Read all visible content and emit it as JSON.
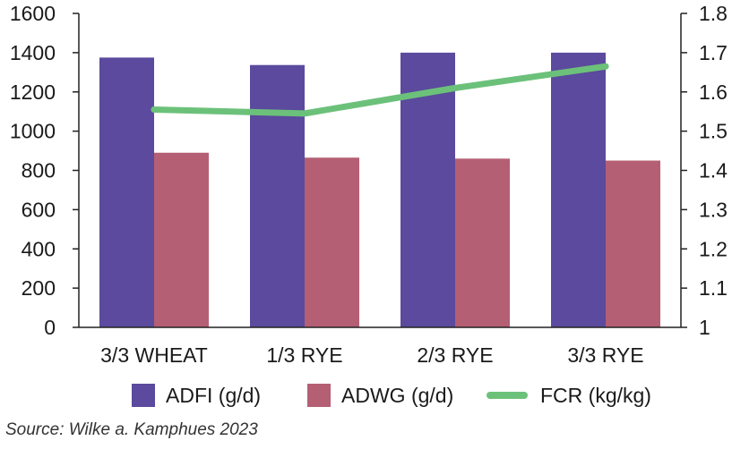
{
  "chart_data": {
    "type": "bar",
    "categories": [
      "3/3 WHEAT",
      "1/3 RYE",
      "2/3 RYE",
      "3/3 RYE"
    ],
    "series": [
      {
        "name": "ADFI (g/d)",
        "type": "bar",
        "axis": "left",
        "color": "#5b4a9d",
        "values": [
          1375,
          1337,
          1400,
          1400
        ]
      },
      {
        "name": "ADWG (g/d)",
        "type": "bar",
        "axis": "left",
        "color": "#b55f74",
        "values": [
          890,
          865,
          860,
          850
        ]
      },
      {
        "name": "FCR (kg/kg)",
        "type": "line",
        "axis": "right",
        "color": "#6cc17a",
        "values": [
          1.555,
          1.545,
          1.61,
          1.665
        ]
      }
    ],
    "left_axis": {
      "ylim": [
        0,
        1600
      ],
      "ticks": [
        "0",
        "200",
        "400",
        "600",
        "800",
        "1000",
        "1200",
        "1400",
        "1600"
      ]
    },
    "right_axis": {
      "ylim": [
        1,
        1.8
      ],
      "ticks": [
        "1",
        "1.1",
        "1.2",
        "1.3",
        "1.4",
        "1.5",
        "1.6",
        "1.7",
        "1.8"
      ]
    },
    "grid": false,
    "legend_placement": "bottom",
    "source": "Source: Wilke a. Kamphues 2023"
  }
}
